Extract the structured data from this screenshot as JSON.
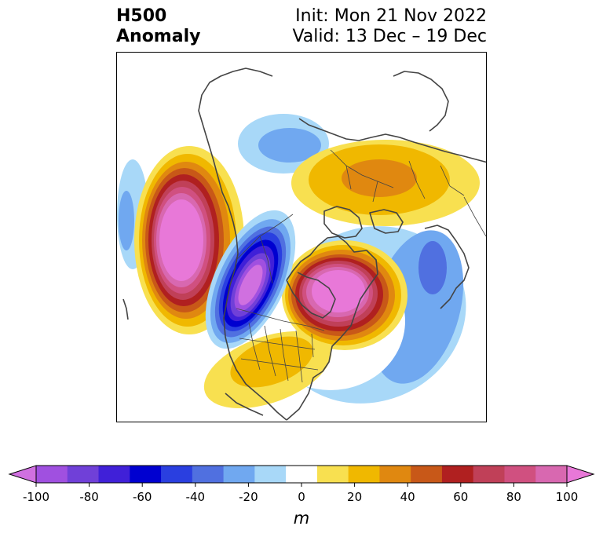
{
  "title": {
    "left_line1": "H500",
    "left_line2": "Anomaly",
    "right_line1": "Init: Mon 21 Nov 2022",
    "right_line2": "Valid: 13 Dec – 19 Dec"
  },
  "colorbar": {
    "unit": "m",
    "min": -100,
    "max": 100,
    "step": 10,
    "tick_labels": [
      "-100",
      "-80",
      "-60",
      "-40",
      "-20",
      "0",
      "20",
      "40",
      "60",
      "80",
      "100"
    ],
    "colors": [
      "#d070e0",
      "#a050e0",
      "#7040d8",
      "#4020d8",
      "#0000d0",
      "#2a3fe0",
      "#5070e0",
      "#70a8f0",
      "#a8d8f8",
      "#ffffff",
      "#f8e050",
      "#f0b800",
      "#e08810",
      "#c85818",
      "#b02020",
      "#c04058",
      "#d05080",
      "#d868b0",
      "#e878d8"
    ]
  },
  "map": {
    "projection": "polar stereographic (North America)",
    "anomalies": [
      {
        "name": "NE Pacific ridge",
        "sign": "positive",
        "peak_m": 100
      },
      {
        "name": "Western Canada trough",
        "sign": "negative",
        "peak_m": -100
      },
      {
        "name": "Hudson Bay ridge",
        "sign": "positive",
        "peak_m": 100
      },
      {
        "name": "Siberia ridge",
        "sign": "positive",
        "peak_m": 40
      },
      {
        "name": "North Atlantic trough",
        "sign": "negative",
        "peak_m": -50
      },
      {
        "name": "Arctic trough",
        "sign": "negative",
        "peak_m": -30
      },
      {
        "name": "Southern US ridge",
        "sign": "positive",
        "peak_m": 30
      }
    ]
  }
}
